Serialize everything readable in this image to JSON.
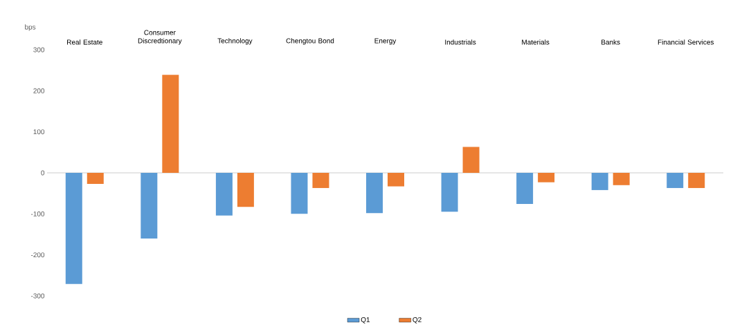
{
  "chart_data": {
    "type": "bar",
    "ylabel": "bps",
    "categories": [
      "Real Estate",
      "Consumer Discredtionary",
      "Technology",
      "Chengtou Bond",
      "Energy",
      "Industrials",
      "Materials",
      "Banks",
      "Financial Services"
    ],
    "series": [
      {
        "name": "Q1",
        "color": "#5b9bd5",
        "values": [
          -271,
          -160,
          -104,
          -100,
          -98,
          -95,
          -76,
          -42,
          -37
        ]
      },
      {
        "name": "Q2",
        "color": "#ed7d31",
        "values": [
          -27,
          239,
          -83,
          -37,
          -33,
          63,
          -23,
          -30,
          -37
        ]
      }
    ],
    "ylim": [
      -300,
      300
    ],
    "yticks": [
      -300,
      -200,
      -100,
      0,
      100,
      200,
      300
    ],
    "legend": "bottom"
  }
}
